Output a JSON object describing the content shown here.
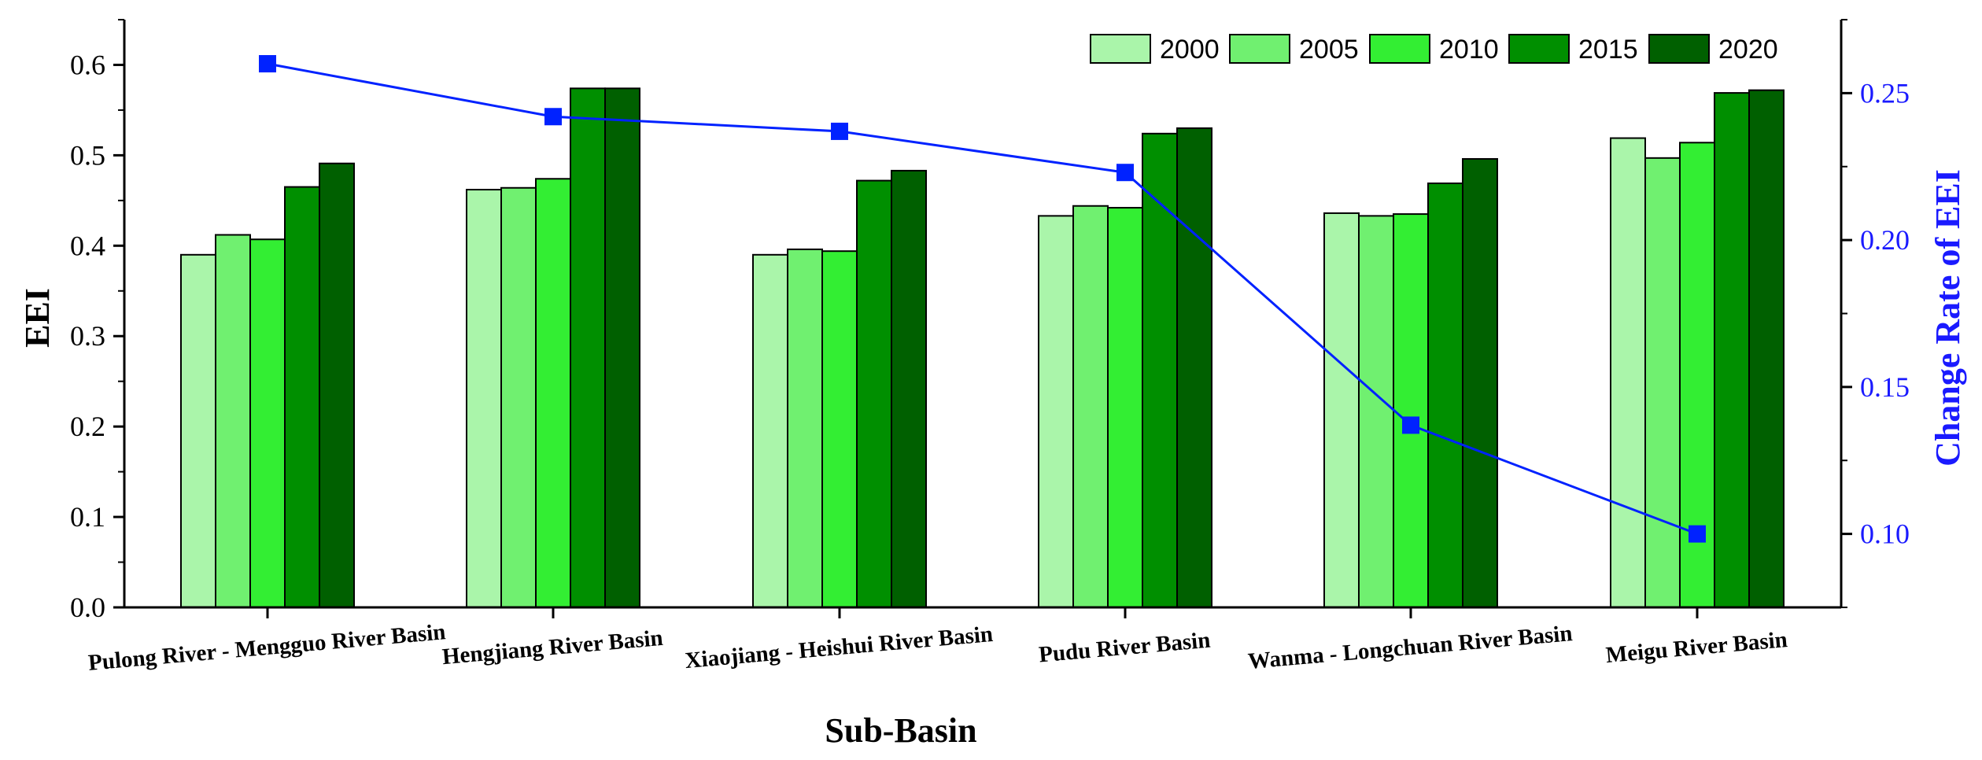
{
  "chart_data": {
    "type": "bar",
    "title": "",
    "xlabel": "Sub-Basin",
    "ylabel": "EEI",
    "y2label": "Change Rate of EEI",
    "categories": [
      "Pulong River - Mengguo River Basin",
      "Hengjiang River Basin",
      "Xiaojiang - Heishui River Basin",
      "Pudu River Basin",
      "Wanma - Longchuan River Basin",
      "Meigu River Basin"
    ],
    "series": [
      {
        "name": "2000",
        "color": "#aaf5aa",
        "values": [
          0.39,
          0.462,
          0.39,
          0.433,
          0.436,
          0.519
        ]
      },
      {
        "name": "2005",
        "color": "#70f070",
        "values": [
          0.412,
          0.464,
          0.396,
          0.444,
          0.433,
          0.497
        ]
      },
      {
        "name": "2010",
        "color": "#33ee33",
        "values": [
          0.407,
          0.474,
          0.394,
          0.442,
          0.435,
          0.514
        ]
      },
      {
        "name": "2015",
        "color": "#008f00",
        "values": [
          0.465,
          0.574,
          0.472,
          0.524,
          0.469,
          0.569
        ]
      },
      {
        "name": "2020",
        "color": "#006000",
        "values": [
          0.491,
          0.574,
          0.483,
          0.53,
          0.496,
          0.572
        ]
      }
    ],
    "line_series": {
      "name": "Change Rate of EEI",
      "color": "#0022ff",
      "axis": "right",
      "values": [
        0.26,
        0.242,
        0.237,
        0.223,
        0.137,
        0.1
      ]
    },
    "ylim": [
      0,
      0.65
    ],
    "y_ticks": [
      "0.0",
      "0.1",
      "0.2",
      "0.3",
      "0.4",
      "0.5",
      "0.6"
    ],
    "y2lim": [
      0.075,
      0.275
    ],
    "y2_ticks": [
      "0.10",
      "0.15",
      "0.20",
      "0.25"
    ],
    "legend_position": "top-right",
    "grid": false
  }
}
